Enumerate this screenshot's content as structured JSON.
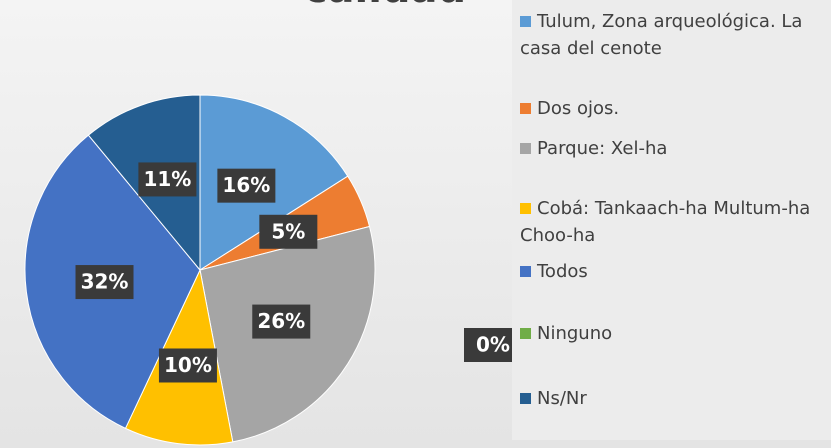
{
  "chart_data": {
    "type": "pie",
    "title": "calidad",
    "categories": [
      "Tulum, Zona arqueológica. La casa del cenote",
      "Dos ojos.",
      "Parque: Xel-ha",
      "Cobá: Tankaach-ha Multum-ha Choo-ha",
      "Todos",
      "Ninguno",
      "Ns/Nr"
    ],
    "values": [
      16,
      5,
      26,
      10,
      32,
      0,
      11
    ],
    "value_labels": [
      "16%",
      "5%",
      "26%",
      "10%",
      "32%",
      "0%",
      "11%"
    ],
    "colors": [
      "#5b9bd5",
      "#ed7d31",
      "#a5a5a5",
      "#ffc000",
      "#4472c4",
      "#70ad47",
      "#255e91"
    ],
    "legend": "right"
  }
}
